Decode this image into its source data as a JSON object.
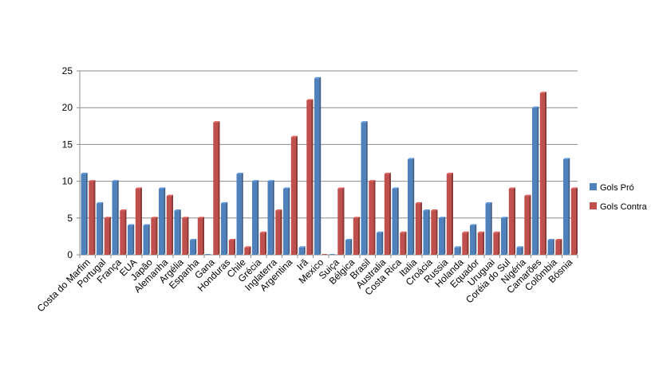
{
  "chart_data": {
    "type": "bar",
    "categories": [
      "Costa do Marfim",
      "Portugal",
      "França",
      "EUA",
      "Japão",
      "Alemanha",
      "Argélia",
      "Espanha",
      "Gana",
      "Honduras",
      "Chile",
      "Grécia",
      "Inglaterra",
      "Argentina",
      "Irã",
      "Mexico",
      "Suiça",
      "Bélgica",
      "Brasil",
      "Australia",
      "Costa Rica",
      "Italia",
      "Croácia",
      "Russia",
      "Holanda",
      "Equador",
      "Uruguai",
      "Coréia do Sul",
      "Nigéria",
      "Camarões",
      "Colômbia",
      "Bósnia"
    ],
    "series": [
      {
        "name": "Gols Pró",
        "color": "#4f81bd",
        "values": [
          11,
          7,
          10,
          4,
          4,
          9,
          6,
          2,
          0,
          7,
          11,
          10,
          10,
          9,
          1,
          24,
          0,
          2,
          18,
          3,
          9,
          13,
          6,
          5,
          1,
          4,
          7,
          5,
          1,
          20,
          2,
          13
        ]
      },
      {
        "name": "Gols Contra",
        "color": "#c0504d",
        "values": [
          10,
          5,
          6,
          9,
          5,
          8,
          5,
          5,
          18,
          2,
          1,
          3,
          6,
          16,
          21,
          0,
          9,
          5,
          10,
          11,
          3,
          7,
          6,
          11,
          3,
          3,
          3,
          9,
          8,
          22,
          2,
          9
        ]
      }
    ],
    "ylim": [
      0,
      25
    ],
    "yticks": [
      0,
      5,
      10,
      15,
      20,
      25
    ],
    "grid": true,
    "legend_position": "right"
  }
}
